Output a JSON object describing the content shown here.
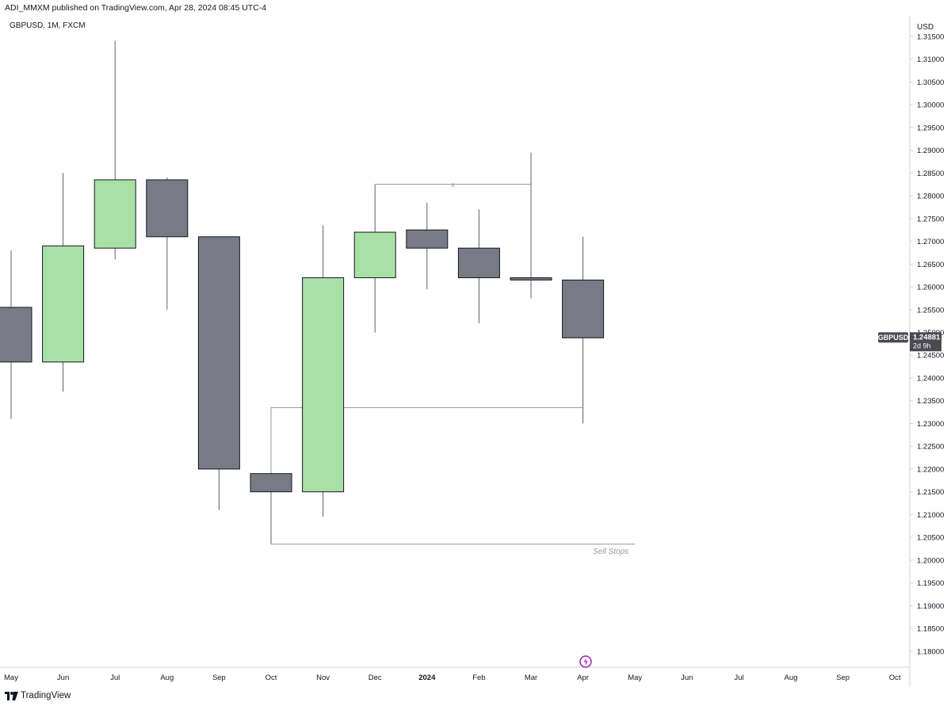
{
  "header": {
    "publisher_line": "ADI_MMXM published on TradingView.com, Apr 28, 2024 08:45 UTC-4",
    "symbol_line": "GBPUSD, 1M, FXCM",
    "currency": "USD"
  },
  "footer": {
    "brand": "TradingView",
    "logo_icon": "tradingview-logo-icon"
  },
  "price_label": {
    "symbol": "GBPUSD",
    "price": "1.24881",
    "countdown": "2d 9h"
  },
  "colors": {
    "up": "#a9e0a6",
    "down": "#787b86",
    "outline": "#131722",
    "line": "#9598a1",
    "accent": "#9c27b0"
  },
  "chart_data": {
    "type": "candlestick",
    "title": "GBPUSD, 1M, FXCM",
    "ylabel": "USD",
    "ylim": [
      1.1765,
      1.3195
    ],
    "grid": false,
    "y_ticks": [
      "1.31500",
      "1.31000",
      "1.30500",
      "1.30000",
      "1.29500",
      "1.29000",
      "1.28500",
      "1.28000",
      "1.27500",
      "1.27000",
      "1.26500",
      "1.26000",
      "1.25500",
      "1.25000",
      "1.24500",
      "1.24000",
      "1.23500",
      "1.23000",
      "1.22500",
      "1.22000",
      "1.21500",
      "1.21000",
      "1.20500",
      "1.20000",
      "1.19500",
      "1.19000",
      "1.18500",
      "1.18000"
    ],
    "x_labels": [
      "May",
      "Jun",
      "Jul",
      "Aug",
      "Sep",
      "Oct",
      "Nov",
      "Dec",
      "2024",
      "Feb",
      "Mar",
      "Apr",
      "May",
      "Jun",
      "Jul",
      "Aug",
      "Sep",
      "Oct"
    ],
    "candles": [
      {
        "period": "May",
        "open": 1.2555,
        "high": 1.268,
        "low": 1.231,
        "close": 1.2435
      },
      {
        "period": "Jun",
        "open": 1.2435,
        "high": 1.285,
        "low": 1.237,
        "close": 1.269
      },
      {
        "period": "Jul",
        "open": 1.2685,
        "high": 1.314,
        "low": 1.266,
        "close": 1.2835
      },
      {
        "period": "Aug",
        "open": 1.2835,
        "high": 1.284,
        "low": 1.255,
        "close": 1.271
      },
      {
        "period": "Sep",
        "open": 1.271,
        "high": 1.271,
        "low": 1.211,
        "close": 1.22
      },
      {
        "period": "Oct",
        "open": 1.219,
        "high": 1.219,
        "low": 1.2035,
        "close": 1.215
      },
      {
        "period": "Nov",
        "open": 1.215,
        "high": 1.2735,
        "low": 1.2095,
        "close": 1.262
      },
      {
        "period": "Dec",
        "open": 1.262,
        "high": 1.2825,
        "low": 1.25,
        "close": 1.272
      },
      {
        "period": "Jan 2024",
        "open": 1.2725,
        "high": 1.2785,
        "low": 1.2595,
        "close": 1.2685
      },
      {
        "period": "Feb",
        "open": 1.2685,
        "high": 1.277,
        "low": 1.252,
        "close": 1.262
      },
      {
        "period": "Mar",
        "open": 1.262,
        "high": 1.2895,
        "low": 1.2575,
        "close": 1.2615
      },
      {
        "period": "Apr",
        "open": 1.2615,
        "high": 1.271,
        "low": 1.23,
        "close": 1.24881
      }
    ],
    "annotations": [
      {
        "kind": "bracket",
        "label": "x",
        "from_period": "Dec",
        "to_period": "Mar",
        "level": 1.2825
      },
      {
        "kind": "bracket",
        "label": "",
        "from_period": "Oct",
        "to_period": "Apr",
        "level": 1.2335
      },
      {
        "kind": "level",
        "label": "Sell Stops",
        "from_period": "Oct",
        "to_period": "May",
        "level": 1.2035
      }
    ]
  }
}
